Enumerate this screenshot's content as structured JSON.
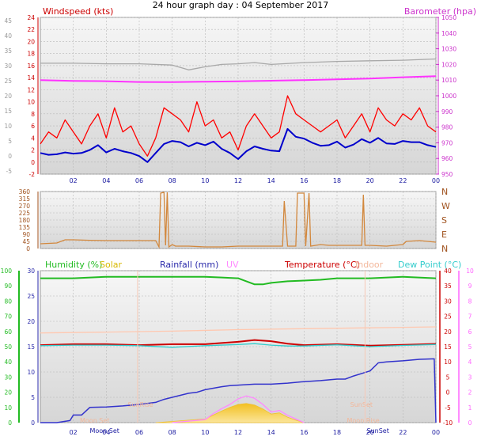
{
  "title": "24 hour graph day : 04 September 2017",
  "colors": {
    "wind_gust": "#ff0000",
    "wind_avg": "#0000cc",
    "barometer": "#ff33ff",
    "indoor_baro_grey": "#a8a8a8",
    "direction": "#d2873c",
    "humidity": "#22bb22",
    "solar": "#f0c030",
    "rainfall": "#3333cc",
    "uv": "#ff88ff",
    "temperature": "#cc0000",
    "indoor": "#ffc8b0",
    "dewpoint": "#33cccc",
    "panel_top": "#f2f2f2",
    "panel_bottom": "#dcdcdc",
    "grid": "#b8b8b8"
  },
  "chart_data": [
    {
      "type": "line",
      "panel": "wind-baro",
      "left_axis_label": "Windspeed (kts)",
      "right_axis_label": "Barometer (hpa)",
      "left_ticks": [
        "24",
        "22",
        "20",
        "18",
        "16",
        "14",
        "12",
        "10",
        "8",
        "6",
        "4",
        "2",
        "0",
        "-2"
      ],
      "left_range": [
        -2,
        24
      ],
      "extra_left_ticks": [
        "45",
        "40",
        "35",
        "30",
        "25",
        "20",
        "15",
        "10",
        "5",
        "0",
        "-5"
      ],
      "right_ticks": [
        "1050",
        "1040",
        "1030",
        "1020",
        "1010",
        "1000",
        "990",
        "980",
        "970",
        "960",
        "950"
      ],
      "right_range": [
        950,
        1050
      ],
      "x_ticks": [
        "02",
        "04",
        "06",
        "08",
        "10",
        "12",
        "14",
        "16",
        "18",
        "20",
        "22",
        "00"
      ],
      "x_range_hours": [
        0,
        24
      ],
      "series": [
        {
          "key": "barometer",
          "axis": "right",
          "x": [
            0,
            2,
            4,
            6,
            8,
            10,
            12,
            14,
            16,
            18,
            20,
            22,
            24
          ],
          "values": [
            1010,
            1009.5,
            1009.3,
            1008.8,
            1008.7,
            1009,
            1009.2,
            1009.6,
            1010,
            1010.5,
            1011,
            1011.8,
            1012.5
          ]
        },
        {
          "key": "indoor_baro_grey",
          "axis": "left",
          "x": [
            0,
            2,
            4,
            6,
            8,
            9,
            10,
            11,
            12,
            13,
            14,
            16,
            18,
            20,
            22,
            24
          ],
          "values": [
            16.4,
            16.4,
            16.3,
            16.3,
            16.1,
            15.3,
            15.8,
            16.2,
            16.3,
            16.5,
            16.2,
            16.5,
            16.7,
            16.8,
            16.9,
            17.1
          ]
        },
        {
          "key": "wind_gust",
          "axis": "left",
          "x": [
            0,
            0.5,
            1,
            1.5,
            2,
            2.5,
            3,
            3.5,
            4,
            4.5,
            5,
            5.5,
            6,
            6.5,
            7,
            7.5,
            8,
            8.5,
            9,
            9.5,
            10,
            10.5,
            11,
            11.5,
            12,
            12.5,
            13,
            13.5,
            14,
            14.5,
            15,
            15.5,
            16,
            16.5,
            17,
            17.5,
            18,
            18.5,
            19,
            19.5,
            20,
            20.5,
            21,
            21.5,
            22,
            22.5,
            23,
            23.5,
            24
          ],
          "values": [
            3,
            5,
            4,
            7,
            5,
            3,
            6,
            8,
            4,
            9,
            5,
            6,
            3,
            1,
            4,
            9,
            8,
            7,
            5,
            10,
            6,
            7,
            4,
            5,
            2,
            6,
            8,
            6,
            4,
            5,
            11,
            8,
            7,
            6,
            5,
            6,
            7,
            4,
            6,
            8,
            5,
            9,
            7,
            6,
            8,
            7,
            9,
            6,
            5
          ]
        },
        {
          "key": "wind_avg",
          "axis": "left",
          "x": [
            0,
            0.5,
            1,
            1.5,
            2,
            2.5,
            3,
            3.5,
            4,
            4.5,
            5,
            5.5,
            6,
            6.5,
            7,
            7.5,
            8,
            8.5,
            9,
            9.5,
            10,
            10.5,
            11,
            11.5,
            12,
            12.5,
            13,
            13.5,
            14,
            14.5,
            15,
            15.5,
            16,
            16.5,
            17,
            17.5,
            18,
            18.5,
            19,
            19.5,
            20,
            20.5,
            21,
            21.5,
            22,
            22.5,
            23,
            23.5,
            24
          ],
          "values": [
            1.5,
            1.2,
            1.3,
            1.6,
            1.4,
            1.5,
            2,
            2.8,
            1.6,
            2.2,
            1.8,
            1.5,
            1,
            0,
            1.5,
            3,
            3.5,
            3.3,
            2.6,
            3.2,
            2.8,
            3.4,
            2.2,
            1.5,
            0.5,
            1.8,
            2.6,
            2.2,
            1.9,
            1.8,
            5.5,
            4.2,
            3.9,
            3.2,
            2.7,
            2.8,
            3.4,
            2.4,
            2.9,
            3.8,
            3.2,
            4,
            3.1,
            3,
            3.5,
            3.3,
            3.3,
            2.8,
            2.5
          ]
        }
      ]
    },
    {
      "type": "line",
      "panel": "wind-direction",
      "left_ticks": [
        "360",
        "315",
        "270",
        "225",
        "180",
        "135",
        "90",
        "45",
        "0"
      ],
      "left_range": [
        0,
        360
      ],
      "right_labels": [
        "N",
        "W",
        "S",
        "E",
        "N"
      ],
      "series": [
        {
          "key": "direction",
          "x": [
            0,
            1,
            1.5,
            2,
            3,
            4,
            5,
            6,
            7,
            7.2,
            7.3,
            7.5,
            7.6,
            7.7,
            7.8,
            8,
            8.2,
            8.4,
            9,
            10,
            11,
            12,
            13,
            14,
            14.7,
            14.8,
            15,
            15.5,
            15.6,
            16,
            16.1,
            16.3,
            16.4,
            17,
            17.5,
            18,
            19,
            19.5,
            19.6,
            19.7,
            20,
            21,
            22,
            22.2,
            23,
            24
          ],
          "values": [
            30,
            35,
            55,
            55,
            52,
            50,
            50,
            50,
            50,
            10,
            350,
            355,
            20,
            355,
            10,
            25,
            15,
            15,
            15,
            10,
            10,
            15,
            15,
            15,
            15,
            300,
            15,
            15,
            350,
            350,
            15,
            350,
            15,
            25,
            20,
            20,
            20,
            20,
            340,
            20,
            20,
            15,
            25,
            45,
            50,
            40
          ]
        }
      ]
    },
    {
      "type": "line",
      "panel": "temp-hum-rain",
      "headers": {
        "humidity": "Humidity (%)",
        "solar": "Solar",
        "rainfall": "Rainfall (mm)",
        "uv": "UV",
        "temperature": "Temperature (°C)",
        "indoor": "Indoor",
        "dewpoint": "Dew Point (°C)"
      },
      "hum_ticks": [
        "100",
        "90",
        "80",
        "70",
        "60",
        "50",
        "40",
        "30",
        "20",
        "10",
        "0"
      ],
      "hum_range": [
        0,
        100
      ],
      "rain_ticks": [
        "30",
        "25",
        "20",
        "15",
        "10",
        "5",
        "0"
      ],
      "rain_range": [
        0,
        30
      ],
      "temp_ticks": [
        "40",
        "35",
        "30",
        "25",
        "20",
        "15",
        "10",
        "5",
        "0",
        "-5",
        "-10"
      ],
      "temp_range": [
        -10,
        40
      ],
      "uv_ticks": [
        "10",
        "9",
        "8",
        "7",
        "6",
        "5",
        "4",
        "3",
        "2",
        "1",
        "0"
      ],
      "annotations": [
        "Moon Set",
        "SunRise",
        "SunSet",
        "Moon Rise",
        "SunSet"
      ],
      "series": [
        {
          "key": "humidity",
          "axis": "hum",
          "x": [
            0,
            2,
            4,
            6,
            8,
            10,
            11,
            12,
            12.5,
            13,
            13.5,
            14,
            15,
            16,
            17,
            18,
            20,
            22,
            24
          ],
          "values": [
            95,
            95,
            96,
            96,
            96,
            96,
            95.5,
            95,
            93,
            91,
            91,
            92,
            93,
            93.5,
            94,
            95,
            95,
            96,
            95
          ]
        },
        {
          "key": "indoor",
          "axis": "temp",
          "x": [
            0,
            4,
            8,
            12,
            16,
            20,
            24
          ],
          "values": [
            19.5,
            19.8,
            20.1,
            20.6,
            20.9,
            21.2,
            21.5
          ]
        },
        {
          "key": "temperature",
          "axis": "temp",
          "x": [
            0,
            2,
            4,
            6,
            8,
            10,
            12,
            13,
            14,
            15,
            16,
            18,
            20,
            22,
            24
          ],
          "values": [
            15.5,
            15.8,
            15.8,
            15.5,
            15.8,
            15.8,
            16.6,
            17.2,
            16.8,
            16,
            15.5,
            15.8,
            15.3,
            15.6,
            15.9
          ]
        },
        {
          "key": "dewpoint",
          "axis": "temp",
          "x": [
            0,
            2,
            4,
            6,
            8,
            10,
            12,
            13,
            14,
            15,
            16,
            18,
            20,
            22,
            24
          ],
          "values": [
            15.3,
            15.5,
            15.5,
            15.3,
            14.8,
            15.3,
            15.7,
            16,
            15.5,
            15.2,
            15.2,
            15.6,
            15.0,
            15.4,
            15.7
          ]
        },
        {
          "key": "rainfall",
          "axis": "rain",
          "x": [
            0,
            1,
            1.8,
            2,
            2.5,
            3,
            4,
            5,
            6,
            7,
            7.5,
            8,
            9,
            9.5,
            10,
            11,
            11.5,
            12,
            13,
            14,
            15,
            16,
            17,
            18,
            18.5,
            19,
            20,
            20.5,
            21,
            22,
            23,
            23.9,
            24
          ],
          "values": [
            0,
            0,
            0.4,
            1.5,
            1.5,
            3,
            3.1,
            3.3,
            3.6,
            4,
            4.6,
            5,
            5.8,
            6,
            6.5,
            7.1,
            7.3,
            7.4,
            7.6,
            7.6,
            7.8,
            8.1,
            8.3,
            8.6,
            8.6,
            9.2,
            10.2,
            11.8,
            12,
            12.2,
            12.5,
            12.6,
            0
          ]
        },
        {
          "key": "solar",
          "axis": "temp",
          "x": [
            7,
            8,
            9,
            10,
            10.5,
            11,
            11.5,
            12,
            12.5,
            13,
            13.5,
            14,
            14.5,
            15,
            15.5,
            16
          ],
          "values": [
            -10,
            -9.6,
            -9.2,
            -8.8,
            -7.5,
            -6.2,
            -5,
            -4,
            -3.7,
            -4.2,
            -5.5,
            -7.2,
            -6.8,
            -8.2,
            -9.2,
            -10
          ]
        },
        {
          "key": "uv",
          "axis": "temp",
          "x": [
            8,
            9,
            10,
            10.5,
            11,
            11.5,
            12,
            12.5,
            13,
            13.5,
            14,
            14.5,
            15,
            15.5,
            16
          ],
          "values": [
            -10,
            -9.5,
            -9,
            -7,
            -5.4,
            -4,
            -2.2,
            -1.2,
            -2,
            -4,
            -6.5,
            -6,
            -7.6,
            -8.8,
            -10
          ]
        }
      ]
    }
  ]
}
